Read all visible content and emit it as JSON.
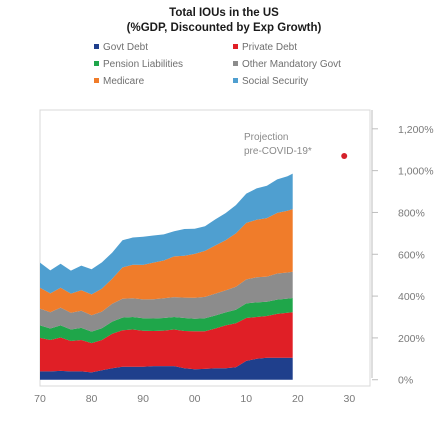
{
  "chart_data": {
    "type": "area",
    "title": "Total IOUs in the US",
    "subtitle": "(%GDP, Discounted by Exp Growth)",
    "x_tick_labels": [
      "70",
      "80",
      "90",
      "00",
      "10",
      "20",
      "30"
    ],
    "x_tick_values": [
      1970,
      1980,
      1990,
      2000,
      2010,
      2020,
      2030
    ],
    "y_tick_labels": [
      "0%",
      "200%",
      "400%",
      "600%",
      "800%",
      "1,000%",
      "1,200%"
    ],
    "y_tick_values": [
      0,
      200,
      400,
      600,
      800,
      1000,
      1200
    ],
    "xlim": [
      1970,
      2034
    ],
    "ylim": [
      -30,
      1290
    ],
    "legend_position": "top",
    "stacking": "stacked",
    "x": [
      1970,
      1972,
      1974,
      1976,
      1978,
      1980,
      1982,
      1984,
      1986,
      1988,
      1990,
      1992,
      1994,
      1996,
      1998,
      2000,
      2002,
      2004,
      2006,
      2008,
      2010,
      2012,
      2014,
      2016,
      2018,
      2019
    ],
    "series": [
      {
        "name": "Govt Debt",
        "color": "#1f3f8c",
        "values": [
          40,
          40,
          42,
          40,
          40,
          35,
          45,
          55,
          62,
          62,
          62,
          65,
          65,
          65,
          55,
          50,
          52,
          55,
          55,
          60,
          90,
          100,
          105,
          105,
          105,
          105
        ]
      },
      {
        "name": "Private Debt",
        "color": "#e01f26",
        "values": [
          160,
          150,
          160,
          145,
          150,
          140,
          145,
          165,
          175,
          178,
          172,
          168,
          170,
          175,
          178,
          182,
          180,
          190,
          205,
          210,
          205,
          200,
          200,
          210,
          215,
          218
        ]
      },
      {
        "name": "Pension Liabilities",
        "color": "#1fa64a",
        "values": [
          60,
          55,
          58,
          55,
          58,
          55,
          56,
          58,
          60,
          60,
          60,
          60,
          60,
          60,
          62,
          60,
          62,
          62,
          62,
          65,
          70,
          70,
          68,
          68,
          68,
          68
        ]
      },
      {
        "name": "Other Mandatory Govt",
        "color": "#8c8c8c",
        "values": [
          80,
          78,
          85,
          80,
          82,
          78,
          80,
          85,
          90,
          90,
          90,
          92,
          95,
          95,
          98,
          100,
          102,
          105,
          105,
          110,
          115,
          120,
          120,
          125,
          125,
          125
        ]
      },
      {
        "name": "Medicare",
        "color": "#f07c2a",
        "values": [
          100,
          90,
          95,
          92,
          98,
          100,
          110,
          120,
          150,
          160,
          165,
          175,
          180,
          195,
          200,
          210,
          220,
          230,
          240,
          255,
          270,
          275,
          280,
          290,
          295,
          300
        ]
      },
      {
        "name": "Social Security",
        "color": "#4f9fd0",
        "values": [
          120,
          110,
          115,
          110,
          118,
          120,
          125,
          125,
          130,
          130,
          135,
          130,
          125,
          120,
          128,
          120,
          118,
          125,
          130,
          135,
          140,
          150,
          155,
          160,
          165,
          170
        ]
      }
    ],
    "projection": {
      "x": 2029,
      "y": 1070,
      "color": "#d4202a"
    },
    "annotations": [
      "Projection",
      "pre-COVID-19*"
    ]
  },
  "legend": [
    {
      "label": "Govt Debt",
      "color": "#1f3f8c"
    },
    {
      "label": "Private Debt",
      "color": "#e01f26"
    },
    {
      "label": "Pension Liabilities",
      "color": "#1fa64a"
    },
    {
      "label": "Other Mandatory Govt",
      "color": "#8c8c8c"
    },
    {
      "label": "Medicare",
      "color": "#f07c2a"
    },
    {
      "label": "Social Security",
      "color": "#4f9fd0"
    }
  ]
}
